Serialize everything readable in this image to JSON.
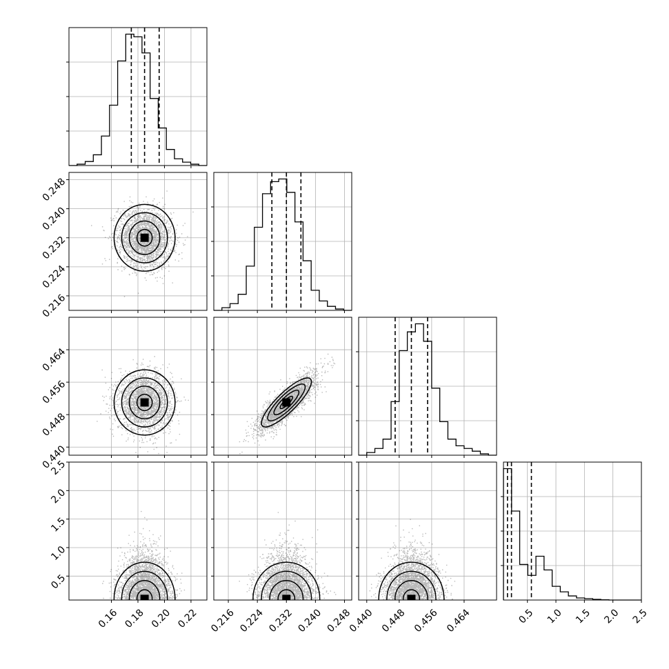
{
  "chart_data": {
    "type": "corner",
    "grid": true,
    "parameters": [
      {
        "range": [
          0.128,
          0.232
        ],
        "ticks": [
          0.16,
          0.18,
          0.2,
          0.22
        ],
        "tick_labels": [
          "0.16",
          "0.18",
          "0.20",
          "0.22"
        ],
        "median": 0.185,
        "std": 0.01,
        "quantiles": [
          0.175,
          0.185,
          0.196
        ],
        "hist": [
          0.0,
          0.01,
          0.03,
          0.08,
          0.22,
          0.45,
          0.78,
          0.98,
          0.96,
          0.84,
          0.5,
          0.28,
          0.12,
          0.05,
          0.025,
          0.01,
          0.0
        ]
      },
      {
        "range": [
          0.212,
          0.25
        ],
        "ticks": [
          0.216,
          0.224,
          0.232,
          0.24,
          0.248
        ],
        "tick_labels": [
          "0.216",
          "0.224",
          "0.232",
          "0.240",
          "0.248"
        ],
        "median": 0.232,
        "std": 0.004,
        "quantiles": [
          0.228,
          0.232,
          0.236
        ],
        "hist": [
          0.0,
          0.02,
          0.05,
          0.12,
          0.33,
          0.62,
          0.87,
          0.96,
          0.98,
          0.88,
          0.66,
          0.37,
          0.15,
          0.07,
          0.03,
          0.01,
          0.0
        ]
      },
      {
        "range": [
          0.438,
          0.472
        ],
        "ticks": [
          0.44,
          0.448,
          0.456,
          0.464
        ],
        "tick_labels": [
          "0.440",
          "0.448",
          "0.456",
          "0.464"
        ],
        "median": 0.451,
        "std": 0.0035,
        "quantiles": [
          0.447,
          0.451,
          0.455
        ],
        "hist": [
          0.0,
          0.02,
          0.05,
          0.12,
          0.4,
          0.78,
          0.92,
          0.98,
          0.85,
          0.5,
          0.25,
          0.12,
          0.07,
          0.05,
          0.03,
          0.01,
          0.0
        ]
      },
      {
        "range": [
          0.08,
          2.5
        ],
        "ticks": [
          0.5,
          1.0,
          1.5,
          2.0,
          2.5
        ],
        "tick_labels": [
          "0.5",
          "1.0",
          "1.5",
          "2.0",
          "2.5"
        ],
        "median": 0.22,
        "std": 0.2,
        "quantiles": [
          0.15,
          0.22,
          0.57
        ],
        "hist": [
          0.96,
          0.65,
          0.26,
          0.18,
          0.32,
          0.22,
          0.1,
          0.06,
          0.03,
          0.015,
          0.01,
          0.005,
          0.002,
          0.0,
          0.0,
          0.0,
          0.0
        ]
      }
    ],
    "correlations": [
      [
        1.0,
        -0.1,
        -0.05,
        0.0
      ],
      [
        -0.1,
        1.0,
        0.85,
        0.0
      ],
      [
        -0.05,
        0.85,
        1.0,
        0.0
      ],
      [
        0.0,
        0.0,
        0.0,
        1.0
      ]
    ],
    "contour_levels_sigma": [
      0.5,
      1.0,
      1.5,
      2.0
    ]
  }
}
